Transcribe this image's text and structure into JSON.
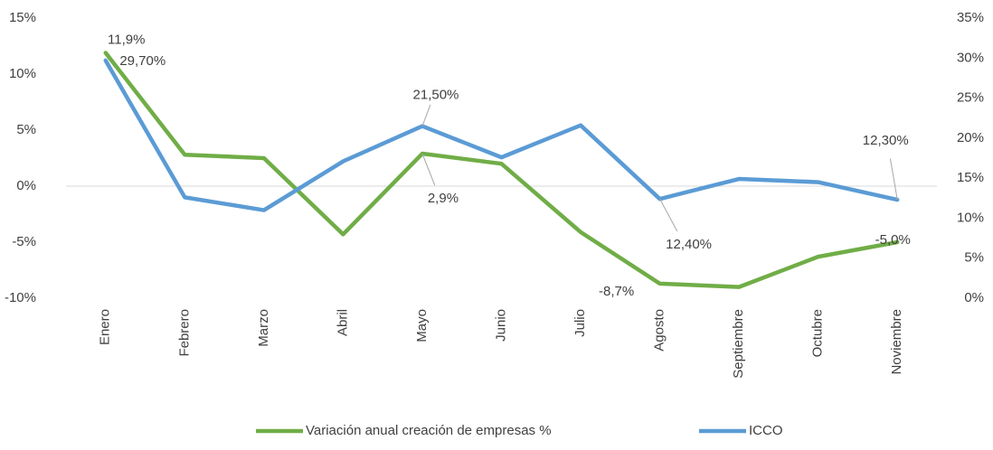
{
  "chart_data": {
    "type": "line",
    "categories": [
      "Enero",
      "Febrero",
      "Marzo",
      "Abril",
      "Mayo",
      "Junio",
      "Julio",
      "Agosto",
      "Septiembre",
      "Octubre",
      "Noviembre"
    ],
    "series": [
      {
        "name": "Variación anual creación de empresas %",
        "color": "#70ad47",
        "axis": "y",
        "values": [
          11.9,
          2.8,
          2.5,
          -4.3,
          2.9,
          2.0,
          -4.1,
          -8.7,
          -9.0,
          -6.3,
          -5.0
        ],
        "value_labels": [
          "11,9%",
          null,
          null,
          null,
          "2,9%",
          null,
          null,
          "-8,7%",
          null,
          null,
          "-5,0%"
        ]
      },
      {
        "name": "ICCO",
        "color": "#5b9bd5",
        "axis": "y2",
        "values": [
          29.7,
          12.6,
          11.0,
          17.1,
          21.5,
          17.6,
          21.6,
          12.4,
          14.9,
          14.5,
          12.3
        ],
        "value_labels": [
          "29,70%",
          null,
          null,
          null,
          "21,50%",
          null,
          null,
          "12,40%",
          null,
          null,
          "12,30%"
        ]
      }
    ],
    "ylim": [
      -10,
      15
    ],
    "yticks": [
      {
        "value": -10,
        "label": "-10%"
      },
      {
        "value": -5,
        "label": "-5%"
      },
      {
        "value": 0,
        "label": "0%"
      },
      {
        "value": 5,
        "label": "5%"
      },
      {
        "value": 10,
        "label": "10%"
      },
      {
        "value": 15,
        "label": "15%"
      }
    ],
    "y2lim": [
      0,
      35
    ],
    "y2ticks": [
      {
        "value": 0,
        "label": "0%"
      },
      {
        "value": 5,
        "label": "5%"
      },
      {
        "value": 10,
        "label": "10%"
      },
      {
        "value": 15,
        "label": "15%"
      },
      {
        "value": 20,
        "label": "20%"
      },
      {
        "value": 25,
        "label": "25%"
      },
      {
        "value": 30,
        "label": "30%"
      },
      {
        "value": 35,
        "label": "35%"
      }
    ],
    "legend": "bottom"
  }
}
